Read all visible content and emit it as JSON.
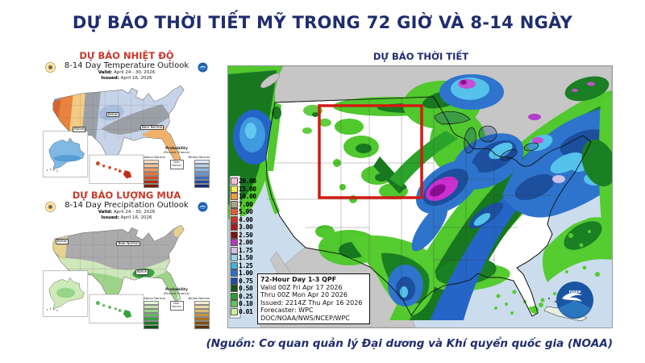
{
  "slide": {
    "title": "DỰ BÁO THỜI TIẾT MỸ TRONG 72 GIỜ VÀ 8-14 NGÀY",
    "source": "(Nguồn: Cơ quan quản lý Đại dương và Khí quyển quốc gia (NOAA)"
  },
  "colors": {
    "title_navy": "#1f2d6e",
    "panel_red": "#c43b2c",
    "highlight_box_red": "#d11a12",
    "ocean_blue": "#cbdded",
    "above_normal_orange": "#e8823c",
    "below_normal_blue": "#c6d3e8",
    "near_normal_gray": "#9aa0a6",
    "above_normal_green": "#9dd389",
    "below_normal_tan": "#e9d28e"
  },
  "temperature_panel": {
    "title": "DỰ BÁO NHIỆT ĐỘ",
    "subtitle": "8-14 Day Temperature Outlook",
    "valid_label": "Valid:",
    "valid_value": "April 24 - 30, 2026",
    "issued_label": "Issued:",
    "issued_value": "April 16, 2026",
    "legend_title": "Probability",
    "legend_subtitle": "(Percent Chance)",
    "legend_above": "Above Normal",
    "legend_below": "Below Normal",
    "legend_near": "Near Normal",
    "map_labels": {
      "above": "Above",
      "below": "Below",
      "near": "Near Normal"
    },
    "above_colors": [
      "#fde3c8",
      "#fbc490",
      "#f79b55",
      "#ee6f33",
      "#d84a22",
      "#b02a14",
      "#801a0a"
    ],
    "below_colors": [
      "#dceaf8",
      "#b8d4f0",
      "#8fb8e8",
      "#5f94d8",
      "#3a6cc0",
      "#2248a0",
      "#142c78"
    ]
  },
  "precipitation_panel": {
    "title": "DỰ BÁO LƯỢNG MƯA",
    "subtitle": "8-14 Day Precipitation Outlook",
    "valid_label": "Valid:",
    "valid_value": "April 24 - 30, 2026",
    "issued_label": "Issued:",
    "issued_value": "April 16, 2026",
    "legend_title": "Probability",
    "legend_subtitle": "(Percent Chance)",
    "legend_above": "Above Normal",
    "legend_below": "Below Normal",
    "legend_near": "Near Normal",
    "map_labels": {
      "above": "Above",
      "below": "Below",
      "near": "Near Normal"
    },
    "above_colors": [
      "#e4f4d4",
      "#c2e6ae",
      "#96d488",
      "#62ba60",
      "#37a03c",
      "#1d7c28",
      "#0e5418"
    ],
    "below_colors": [
      "#f6ecd2",
      "#ecd8a4",
      "#dcba70",
      "#c89440",
      "#a86e22",
      "#824c10",
      "#5a3206"
    ]
  },
  "qpf_panel": {
    "title": "DỰ BÁO THỜI TIẾT",
    "legend": [
      {
        "value": "20.00",
        "color": "#f6bcd2"
      },
      {
        "value": "15.00",
        "color": "#f4ec49"
      },
      {
        "value": "10.00",
        "color": "#f09c3c"
      },
      {
        "value": "7.00",
        "color": "#ada089"
      },
      {
        "value": "5.00",
        "color": "#e65c39"
      },
      {
        "value": "4.00",
        "color": "#d63128"
      },
      {
        "value": "3.00",
        "color": "#a81c1c"
      },
      {
        "value": "2.50",
        "color": "#7c1210"
      },
      {
        "value": "2.00",
        "color": "#ad3bbf"
      },
      {
        "value": "1.75",
        "color": "#cfc0e8"
      },
      {
        "value": "1.50",
        "color": "#97d8f0"
      },
      {
        "value": "1.25",
        "color": "#41b2e4"
      },
      {
        "value": "1.00",
        "color": "#2a72cf"
      },
      {
        "value": "0.75",
        "color": "#1c4fa4"
      },
      {
        "value": "0.50",
        "color": "#135418"
      },
      {
        "value": "0.25",
        "color": "#2b9e2b"
      },
      {
        "value": "0.10",
        "color": "#5fc45f"
      },
      {
        "value": "0.01",
        "color": "#cdf09c"
      }
    ],
    "info_box": {
      "title": "72-Hour Day 1-3 QPF",
      "valid": "Valid 00Z Fri Apr 17 2026",
      "thru": "Thru 00Z Mon Apr 20 2026",
      "issued": "Issued: 2214Z Thu Apr 16 2026",
      "forecaster": "Forecaster: WPC",
      "agency": "DOC/NOAA/NWS/NCEP/WPC"
    },
    "noaa_logo_text": "noaa"
  }
}
